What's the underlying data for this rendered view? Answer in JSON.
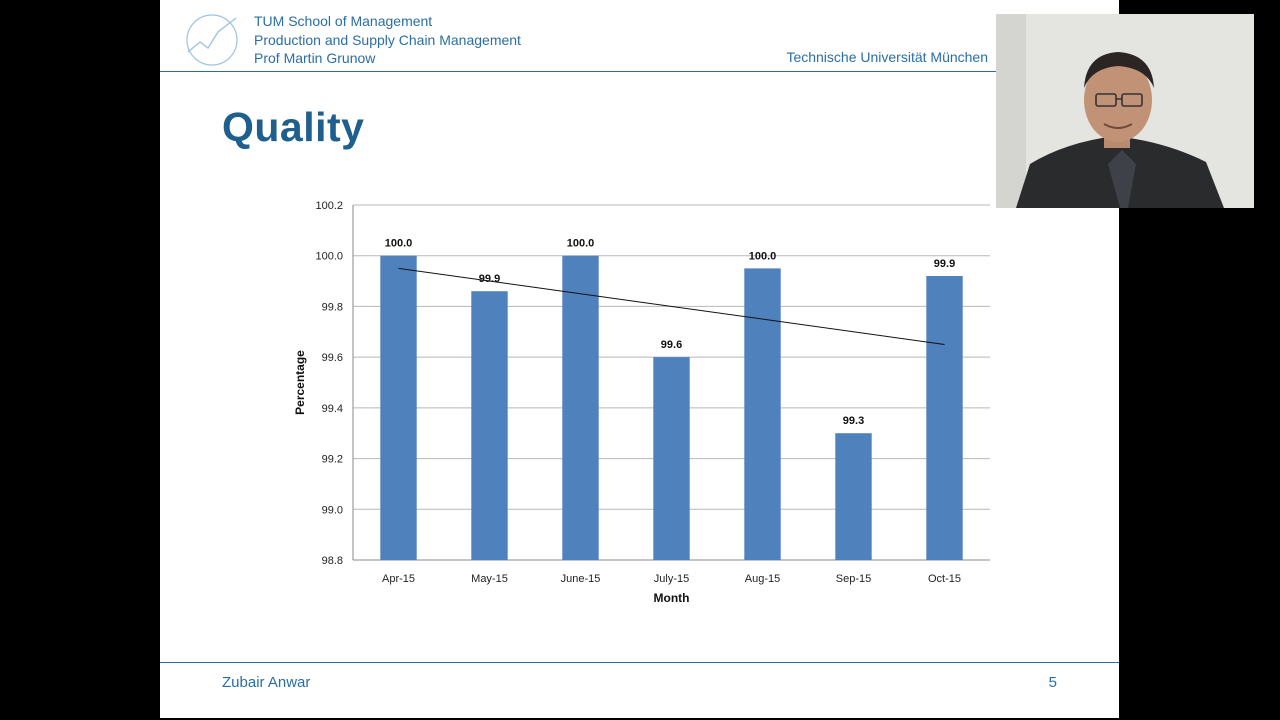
{
  "header": {
    "line1": "TUM School of Management",
    "line2": "Production and Supply Chain Management",
    "line3": "Prof Martin Grunow",
    "university": "Technische Universität München"
  },
  "slide": {
    "title": "Quality",
    "author": "Zubair Anwar",
    "page_number": "5"
  },
  "colors": {
    "brand": "#2a6ea6",
    "title": "#1f5f8e",
    "bar": "#4f81bd"
  },
  "chart_data": {
    "type": "bar",
    "title": "",
    "xlabel": "Month",
    "ylabel": "Percentage",
    "categories": [
      "Apr-15",
      "May-15",
      "June-15",
      "July-15",
      "Aug-15",
      "Sep-15",
      "Oct-15"
    ],
    "values": [
      100.0,
      99.86,
      100.0,
      99.6,
      99.95,
      99.3,
      99.92
    ],
    "data_labels": [
      "100.0",
      "99.9",
      "100.0",
      "99.6",
      "100.0",
      "99.3",
      "99.9"
    ],
    "ylim": [
      98.8,
      100.2
    ],
    "yticks": [
      "98.8",
      "99.0",
      "99.2",
      "99.4",
      "99.6",
      "99.8",
      "100.0",
      "100.2"
    ],
    "grid": true,
    "legend": "none",
    "trendline": {
      "start": 99.95,
      "end": 99.65
    }
  }
}
